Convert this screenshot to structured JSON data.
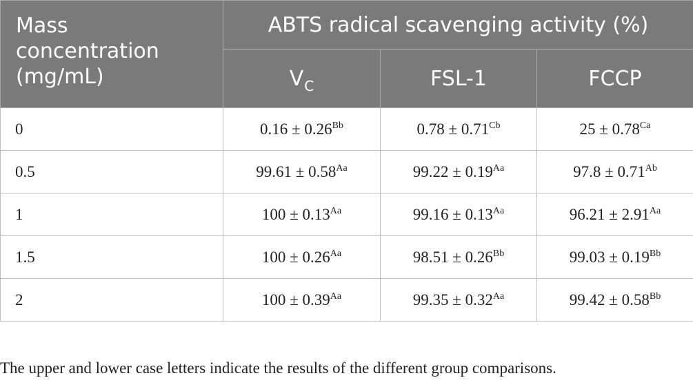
{
  "header": {
    "row_label_lines": [
      "Mass",
      "concentration",
      "(mg/mL)"
    ],
    "group_title": "ABTS radical scavenging activity (%)",
    "columns": [
      {
        "main": "V",
        "sub": "C"
      },
      {
        "main": "FSL-1",
        "sub": ""
      },
      {
        "main": "FCCP",
        "sub": ""
      }
    ]
  },
  "rows": [
    {
      "label": "0",
      "cells": [
        {
          "value": "0.16 ± 0.26",
          "sup": "Bb"
        },
        {
          "value": "0.78 ± 0.71",
          "sup": "Cb"
        },
        {
          "value": "25 ± 0.78",
          "sup": "Ca"
        }
      ]
    },
    {
      "label": "0.5",
      "cells": [
        {
          "value": "99.61 ± 0.58",
          "sup": "Aa"
        },
        {
          "value": "99.22 ± 0.19",
          "sup": "Aa"
        },
        {
          "value": "97.8 ± 0.71",
          "sup": "Ab"
        }
      ]
    },
    {
      "label": "1",
      "cells": [
        {
          "value": "100 ± 0.13",
          "sup": "Aa"
        },
        {
          "value": "99.16 ± 0.13",
          "sup": "Aa"
        },
        {
          "value": "96.21 ± 2.91",
          "sup": "Aa"
        }
      ]
    },
    {
      "label": "1.5",
      "cells": [
        {
          "value": "100 ± 0.26",
          "sup": "Aa"
        },
        {
          "value": "98.51 ± 0.26",
          "sup": "Bb"
        },
        {
          "value": "99.03 ± 0.19",
          "sup": "Bb"
        }
      ]
    },
    {
      "label": "2",
      "cells": [
        {
          "value": "100 ± 0.39",
          "sup": "Aa"
        },
        {
          "value": "99.35 ± 0.32",
          "sup": "Aa"
        },
        {
          "value": "99.42 ± 0.58",
          "sup": "Bb"
        }
      ]
    }
  ],
  "footnote": "The upper and lower case letters indicate the results of the different group comparisons.",
  "colors": {
    "header_bg": "#7a7a7a",
    "header_text": "#ffffff",
    "grid": "#bdbdbd",
    "body_text": "#222222"
  }
}
